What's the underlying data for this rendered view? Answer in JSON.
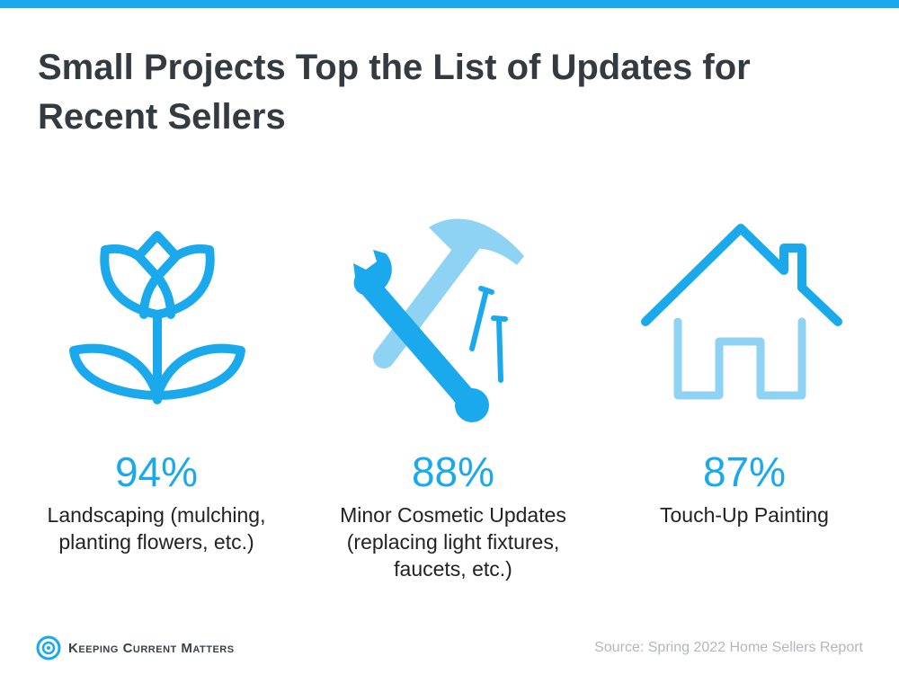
{
  "title": "Small Projects Top the List of Updates for Recent Sellers",
  "colors": {
    "accent": "#1aa9ec",
    "accent_light": "#8fd3f4",
    "title": "#333a40",
    "source": "#b3b7bb"
  },
  "stats": [
    {
      "icon": "flower-icon",
      "value": "94%",
      "label": "Landscaping (mulching, planting flowers, etc.)"
    },
    {
      "icon": "tools-icon",
      "value": "88%",
      "label": "Minor Cosmetic Updates (replacing light fixtures, faucets, etc.)"
    },
    {
      "icon": "house-icon",
      "value": "87%",
      "label": "Touch-Up Painting"
    }
  ],
  "footer": {
    "logo_icon": "kcm-logo-icon",
    "logo_text": "Keeping Current Matters",
    "source": "Source: Spring 2022 Home Sellers Report"
  }
}
